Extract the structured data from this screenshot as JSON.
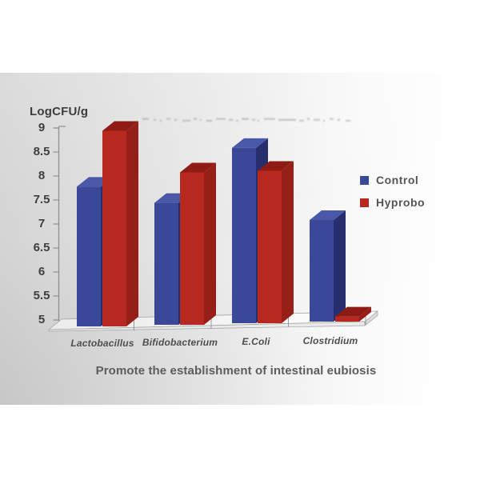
{
  "figure": {
    "caption": "Promote the establishment of intestinal eubiosis"
  },
  "chart_data": {
    "type": "bar",
    "style": "3d-column",
    "title": "",
    "ylabel": "LogCFU/g",
    "xlabel": "",
    "categories": [
      "Lactobacillus",
      "Bifidobacterium",
      "E.Coli",
      "Clostridium"
    ],
    "series": [
      {
        "name": "Control",
        "color": "#3A4899",
        "top_color": "#4A58A8",
        "side_color": "#272E6E",
        "values": [
          7.75,
          7.4,
          8.45,
          7.0
        ]
      },
      {
        "name": "Hyprobo",
        "color": "#B7291F",
        "top_color": "#8E1C15",
        "side_color": "#962018",
        "values": [
          8.85,
          8.0,
          8.0,
          5.1
        ]
      }
    ],
    "ylim": [
      5,
      9
    ],
    "ytick_step": 0.5,
    "grid": false,
    "legend_position": "right"
  }
}
